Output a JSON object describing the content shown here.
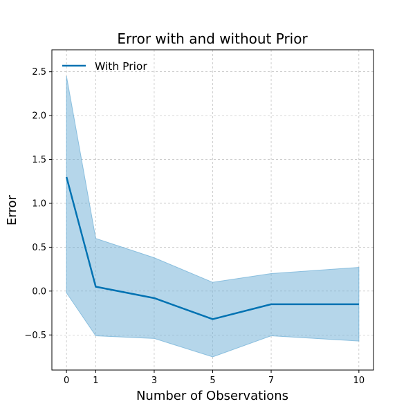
{
  "chart_data": {
    "type": "line",
    "title": "Error with and without Prior",
    "xlabel": "Number of Observations",
    "ylabel": "Error",
    "x": [
      0,
      1,
      3,
      5,
      7,
      10
    ],
    "xticks": [
      0,
      1,
      3,
      5,
      7,
      10
    ],
    "xlim": [
      -0.5,
      10.5
    ],
    "ylim": [
      -0.9,
      2.75
    ],
    "yticks": [
      -0.5,
      0.0,
      0.5,
      1.0,
      1.5,
      2.0,
      2.5
    ],
    "ytick_labels": [
      "−0.5",
      "0.0",
      "0.5",
      "1.0",
      "1.5",
      "2.0",
      "2.5"
    ],
    "grid": true,
    "legend_position": "top-left",
    "series": [
      {
        "name": "With Prior",
        "color": "#0072b2",
        "band_color": "#6baed6",
        "values": [
          1.3,
          0.05,
          -0.08,
          -0.32,
          -0.15,
          -0.15
        ],
        "upper": [
          2.45,
          0.6,
          0.38,
          0.1,
          0.2,
          0.27
        ],
        "lower": [
          -0.02,
          -0.51,
          -0.54,
          -0.75,
          -0.51,
          -0.57
        ]
      }
    ]
  }
}
